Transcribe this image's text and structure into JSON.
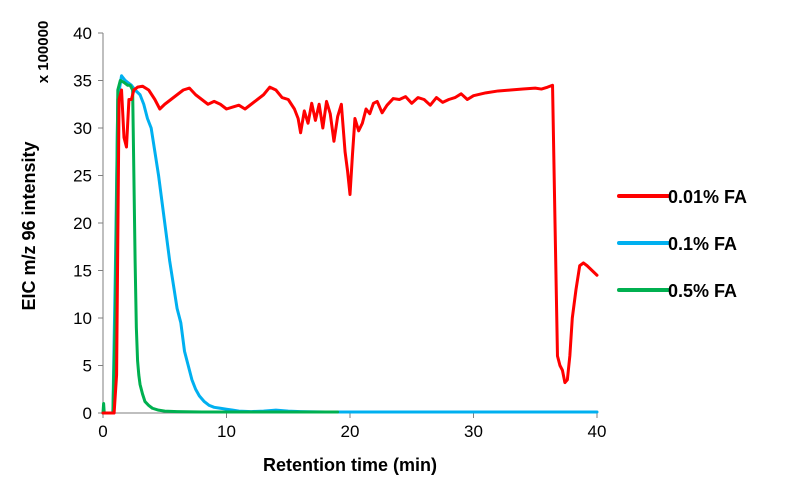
{
  "chart_data": {
    "type": "line",
    "title": "",
    "xlabel": "Retention time (min)",
    "ylabel": "EIC m/z 96 intensity",
    "y_scale_label": "x 100000",
    "xlim": [
      0,
      40
    ],
    "ylim": [
      0,
      40
    ],
    "x_ticks": [
      "0",
      "10",
      "20",
      "30",
      "40"
    ],
    "y_ticks": [
      "0",
      "5",
      "10",
      "15",
      "20",
      "25",
      "30",
      "35",
      "40"
    ],
    "grid": false,
    "legend_position": "right",
    "series": [
      {
        "name": "0.01% FA",
        "color": "#ff0000",
        "x": [
          0.0,
          0.9,
          1.1,
          1.3,
          1.5,
          1.7,
          1.9,
          2.1,
          2.3,
          2.5,
          2.8,
          3.2,
          3.7,
          4.2,
          4.6,
          5.0,
          5.5,
          6.0,
          6.5,
          7.0,
          7.5,
          8.0,
          8.5,
          9.0,
          9.5,
          10.0,
          10.5,
          11.0,
          11.5,
          12.0,
          12.5,
          13.0,
          13.5,
          14.0,
          14.5,
          15.0,
          15.5,
          15.8,
          16.0,
          16.3,
          16.6,
          16.9,
          17.2,
          17.5,
          17.8,
          18.1,
          18.4,
          18.7,
          19.0,
          19.3,
          19.6,
          19.8,
          20.0,
          20.2,
          20.4,
          20.7,
          21.0,
          21.3,
          21.6,
          21.9,
          22.2,
          22.6,
          23.0,
          23.5,
          24.0,
          24.5,
          25.0,
          25.5,
          26.0,
          26.5,
          27.0,
          27.5,
          28.0,
          28.5,
          29.0,
          29.5,
          30.0,
          31.0,
          32.0,
          33.0,
          34.0,
          35.0,
          35.5,
          36.0,
          36.4,
          36.6,
          36.8,
          37.0,
          37.2,
          37.4,
          37.6,
          37.8,
          38.0,
          38.3,
          38.6,
          38.9,
          39.2,
          39.6,
          40.0
        ],
        "y": [
          0,
          0,
          4,
          33,
          34,
          29,
          28,
          33,
          33,
          34,
          34.3,
          34.4,
          34,
          33,
          32,
          32.5,
          33,
          33.5,
          34,
          34.2,
          33.5,
          33,
          32.5,
          32.8,
          32.5,
          32,
          32.2,
          32.4,
          32,
          32.5,
          33,
          33.5,
          34.3,
          34,
          33.2,
          33,
          32,
          31,
          29.5,
          31.8,
          30.5,
          32.6,
          30.8,
          32.5,
          30,
          32.8,
          31.5,
          28.6,
          31.2,
          32.5,
          27.5,
          25.5,
          23,
          27.2,
          31,
          29.7,
          30.5,
          32,
          31.5,
          32.6,
          32.8,
          31.6,
          32.4,
          33.1,
          33,
          33.3,
          32.6,
          33.2,
          33,
          32.4,
          33.2,
          32.7,
          33,
          33.2,
          33.6,
          33,
          33.4,
          33.7,
          33.9,
          34,
          34.1,
          34.2,
          34.1,
          34.3,
          34.5,
          20,
          6,
          5,
          4.5,
          3.2,
          3.5,
          6,
          10,
          13,
          15.5,
          15.8,
          15.5,
          15,
          14.5
        ]
      },
      {
        "name": "0.1% FA",
        "color": "#00b0f0",
        "x": [
          0.0,
          0.8,
          1.0,
          1.2,
          1.5,
          1.8,
          2.0,
          2.3,
          2.6,
          3.0,
          3.3,
          3.6,
          3.9,
          4.2,
          4.5,
          4.8,
          5.1,
          5.4,
          5.7,
          6.0,
          6.3,
          6.6,
          6.9,
          7.2,
          7.5,
          7.8,
          8.2,
          8.6,
          9.0,
          9.5,
          10.0,
          10.5,
          11.0,
          12.0,
          13.0,
          14.0,
          15.0,
          16.0,
          18.0,
          20.0,
          25.0,
          30.0,
          35.0,
          40.0
        ],
        "y": [
          0,
          0,
          15,
          33,
          35.5,
          35,
          34.8,
          34.5,
          34,
          33.5,
          32.5,
          31,
          30,
          27.5,
          25,
          22,
          19,
          16,
          13.5,
          11,
          9.5,
          6.5,
          5,
          3.5,
          2.5,
          1.8,
          1.2,
          0.8,
          0.6,
          0.5,
          0.4,
          0.3,
          0.2,
          0.15,
          0.2,
          0.3,
          0.2,
          0.15,
          0.1,
          0.1,
          0.1,
          0.1,
          0.1,
          0.1
        ]
      },
      {
        "name": "0.5% FA",
        "color": "#00b050",
        "x": [
          0.0,
          0.05,
          0.1,
          0.8,
          1.0,
          1.2,
          1.4,
          1.7,
          2.0,
          2.2,
          2.4,
          2.5,
          2.6,
          2.7,
          2.8,
          2.9,
          3.0,
          3.2,
          3.4,
          3.7,
          4.0,
          4.5,
          5.0,
          6.0,
          8.0,
          10.0,
          12.0,
          14.0,
          16.0,
          18.0,
          19.0
        ],
        "y": [
          0,
          1,
          0,
          0,
          10,
          34,
          35,
          34.8,
          34.5,
          34.5,
          34,
          25,
          16,
          9,
          5.5,
          4,
          3,
          2,
          1.2,
          0.8,
          0.5,
          0.3,
          0.2,
          0.15,
          0.1,
          0.1,
          0.1,
          0.1,
          0.1,
          0.1,
          0.1
        ]
      }
    ]
  }
}
